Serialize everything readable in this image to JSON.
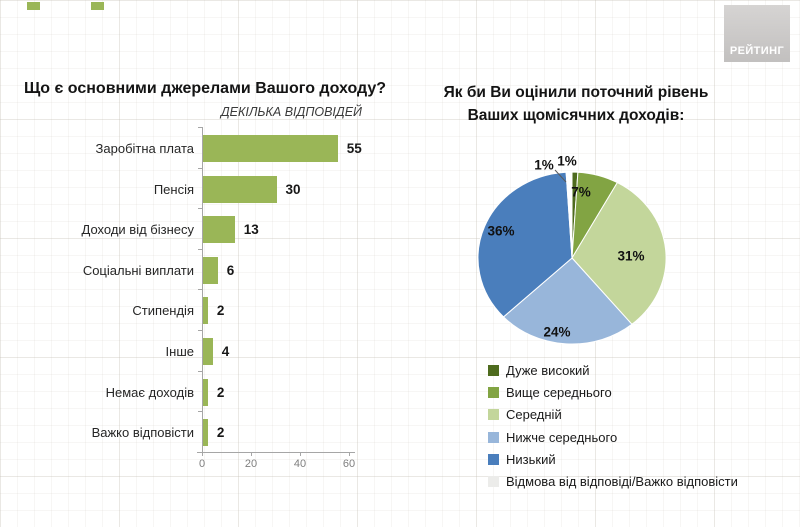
{
  "logo": {
    "label": "РЕЙТИНГ"
  },
  "chart_data": [
    {
      "type": "bar",
      "orientation": "horizontal",
      "title": "Що є основними джерелами Вашого доходу?",
      "subtitle": "ДЕКІЛЬКА ВІДПОВІДЕЙ",
      "categories": [
        "Заробітна плата",
        "Пенсія",
        "Доходи від бізнесу",
        "Соціальні виплати",
        "Стипендія",
        "Інше",
        "Немає доходів",
        "Важко відповісти"
      ],
      "values": [
        55,
        30,
        13,
        6,
        2,
        4,
        2,
        2
      ],
      "value_labels": [
        "55",
        "30",
        "13",
        "6",
        "2",
        "4",
        "2",
        "2"
      ],
      "xlabel": "",
      "ylabel": "",
      "xlim": [
        0,
        60
      ],
      "xticks": [
        0,
        20,
        40,
        60
      ],
      "bar_color": "#9ab657",
      "grid": false,
      "legend": false
    },
    {
      "type": "pie",
      "title": "Як би Ви оцінили поточний рівень Ваших щомісячних доходів:",
      "title_lines": [
        "Як би Ви оцінили поточний рівень",
        "Ваших щомісячних доходів:"
      ],
      "start_angle": "12-oclock",
      "direction": "clockwise",
      "legend_position": "bottom-left",
      "slices": [
        {
          "label": "Дуже високий",
          "value": 1,
          "percent_label": "1%",
          "color": "#4e6b1e"
        },
        {
          "label": "Вище середнього",
          "value": 7,
          "percent_label": "7%",
          "color": "#82a443"
        },
        {
          "label": "Середній",
          "value": 31,
          "percent_label": "31%",
          "color": "#c3d69b"
        },
        {
          "label": "Нижче середнього",
          "value": 24,
          "percent_label": "24%",
          "color": "#98b6da"
        },
        {
          "label": "Низький",
          "value": 36,
          "percent_label": "36%",
          "color": "#4a7ebc"
        },
        {
          "label": "Відмова від відповіді/Важко відповісти",
          "value": 1,
          "percent_label": "1%",
          "color": "#ffffff",
          "legend_swatch_color": "#ececea"
        }
      ]
    }
  ]
}
